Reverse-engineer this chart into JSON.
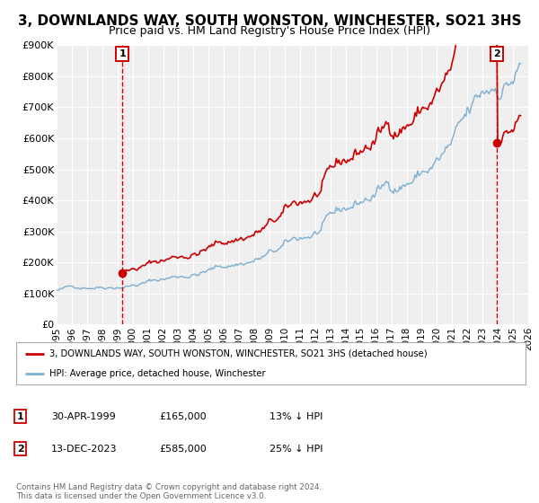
{
  "title": "3, DOWNLANDS WAY, SOUTH WONSTON, WINCHESTER, SO21 3HS",
  "subtitle": "Price paid vs. HM Land Registry's House Price Index (HPI)",
  "title_fontsize": 11,
  "subtitle_fontsize": 9,
  "xlim": [
    1995,
    2026
  ],
  "ylim": [
    0,
    900000
  ],
  "yticks": [
    0,
    100000,
    200000,
    300000,
    400000,
    500000,
    600000,
    700000,
    800000,
    900000
  ],
  "ytick_labels": [
    "£0",
    "£100K",
    "£200K",
    "£300K",
    "£400K",
    "£500K",
    "£600K",
    "£700K",
    "£800K",
    "£900K"
  ],
  "xticks": [
    1995,
    1996,
    1997,
    1998,
    1999,
    2000,
    2001,
    2002,
    2003,
    2004,
    2005,
    2006,
    2007,
    2008,
    2009,
    2010,
    2011,
    2012,
    2013,
    2014,
    2015,
    2016,
    2017,
    2018,
    2019,
    2020,
    2021,
    2022,
    2023,
    2024,
    2025,
    2026
  ],
  "hpi_color": "#7bafd4",
  "price_color": "#cc0000",
  "vline1_x": 1999.33,
  "vline2_x": 2023.96,
  "sale1_x": 1999.33,
  "sale1_y": 165000,
  "sale2_x": 2023.96,
  "sale2_y": 585000,
  "legend_line1": "3, DOWNLANDS WAY, SOUTH WONSTON, WINCHESTER, SO21 3HS (detached house)",
  "legend_line2": "HPI: Average price, detached house, Winchester",
  "table_row1": [
    "1",
    "30-APR-1999",
    "£165,000",
    "13% ↓ HPI"
  ],
  "table_row2": [
    "2",
    "13-DEC-2023",
    "£585,000",
    "25% ↓ HPI"
  ],
  "footnote": "Contains HM Land Registry data © Crown copyright and database right 2024.\nThis data is licensed under the Open Government Licence v3.0.",
  "bg_color": "#ffffff",
  "plot_bg_color": "#efefef",
  "grid_color": "#ffffff"
}
